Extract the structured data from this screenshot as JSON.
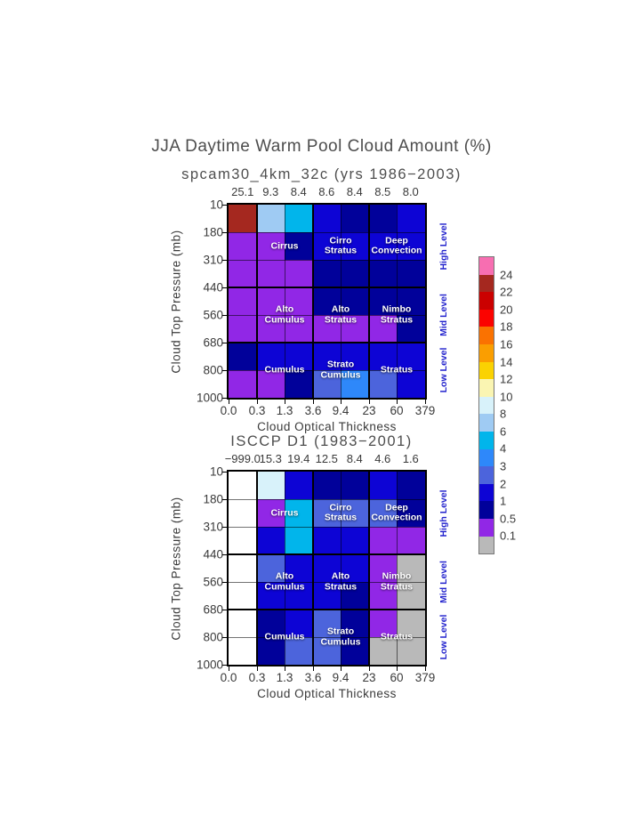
{
  "title": "JJA Daytime Warm Pool Cloud Amount (%)",
  "palette": {
    "gt24": "#f76eb1",
    "22-24": "#a5281f",
    "20-22": "#cb0100",
    "18-20": "#fb0300",
    "16-18": "#fa7201",
    "14-16": "#fa9e01",
    "12-14": "#fad202",
    "10-12": "#faf5b2",
    "8-10": "#d8f2fa",
    "6-8": "#9fcbf3",
    "4-6": "#01b5eb",
    "3-4": "#2e88fa",
    "2-3": "#4c64dc",
    "1-2": "#0d04d5",
    "0.5-1": "#01019a",
    "0.1-0.5": "#9127e6",
    "lt0.1": "#b9b9b9",
    "missing": "#ffffff"
  },
  "panels": [
    {
      "subtitle": "spcam30_4km_32c (yrs 1986−2003)",
      "column_values": [
        "25.1",
        "9.3",
        "8.4",
        "8.6",
        "8.4",
        "8.5",
        "8.0"
      ],
      "x_ticks": [
        "0.0",
        "0.3",
        "1.3",
        "3.6",
        "9.4",
        "23",
        "60",
        "379"
      ],
      "y_ticks": [
        "10",
        "180",
        "310",
        "440",
        "560",
        "680",
        "800",
        "1000"
      ],
      "x_label": "Cloud Optical Thickness",
      "y_label": "Cloud Top Pressure (mb)",
      "level_labels": [
        "High Level",
        "Mid Level",
        "Low Level"
      ],
      "type_labels": [
        {
          "lines": [
            "Cirrus"
          ],
          "bx": 0,
          "by": 0
        },
        {
          "lines": [
            "Cirro",
            "Stratus"
          ],
          "bx": 1,
          "by": 0
        },
        {
          "lines": [
            "Deep",
            "Convection"
          ],
          "bx": 2,
          "by": 0
        },
        {
          "lines": [
            "Alto",
            "Cumulus"
          ],
          "bx": 0,
          "by": 1
        },
        {
          "lines": [
            "Alto",
            "Stratus"
          ],
          "bx": 1,
          "by": 1
        },
        {
          "lines": [
            "Nimbo",
            "Stratus"
          ],
          "bx": 2,
          "by": 1
        },
        {
          "lines": [
            "Cumulus"
          ],
          "bx": 0,
          "by": 2
        },
        {
          "lines": [
            "Strato",
            "Cumulus"
          ],
          "bx": 1,
          "by": 2
        },
        {
          "lines": [
            "Stratus"
          ],
          "bx": 2,
          "by": 2
        }
      ]
    },
    {
      "subtitle": "ISCCP D1 (1983−2001)",
      "column_values": [
        "−999.0",
        "15.3",
        "19.4",
        "12.5",
        "8.4",
        "4.6",
        "1.6"
      ],
      "x_ticks": [
        "0.0",
        "0.3",
        "1.3",
        "3.6",
        "9.4",
        "23",
        "60",
        "379"
      ],
      "y_ticks": [
        "10",
        "180",
        "310",
        "440",
        "560",
        "680",
        "800",
        "1000"
      ],
      "x_label": "Cloud Optical Thickness",
      "y_label": "Cloud Top Pressure (mb)",
      "level_labels": [
        "High Level",
        "Mid Level",
        "Low Level"
      ],
      "type_labels": [
        {
          "lines": [
            "Cirrus"
          ],
          "bx": 0,
          "by": 0
        },
        {
          "lines": [
            "Cirro",
            "Stratus"
          ],
          "bx": 1,
          "by": 0
        },
        {
          "lines": [
            "Deep",
            "Convection"
          ],
          "bx": 2,
          "by": 0
        },
        {
          "lines": [
            "Alto",
            "Cumulus"
          ],
          "bx": 0,
          "by": 1
        },
        {
          "lines": [
            "Alto",
            "Stratus"
          ],
          "bx": 1,
          "by": 1
        },
        {
          "lines": [
            "Nimbo",
            "Stratus"
          ],
          "bx": 2,
          "by": 1
        },
        {
          "lines": [
            "Cumulus"
          ],
          "bx": 0,
          "by": 2
        },
        {
          "lines": [
            "Strato",
            "Cumulus"
          ],
          "bx": 1,
          "by": 2
        },
        {
          "lines": [
            "Stratus"
          ],
          "bx": 2,
          "by": 2
        }
      ]
    }
  ],
  "colorbar": {
    "segment_keys": [
      "gt24",
      "22-24",
      "20-22",
      "18-20",
      "16-18",
      "14-16",
      "12-14",
      "10-12",
      "8-10",
      "6-8",
      "4-6",
      "3-4",
      "2-3",
      "1-2",
      "0.5-1",
      "0.1-0.5",
      "lt0.1"
    ],
    "tick_labels": [
      "24",
      "22",
      "20",
      "18",
      "16",
      "14",
      "12",
      "10",
      "8",
      "6",
      "4",
      "3",
      "2",
      "1",
      "0.5",
      "0.1"
    ],
    "tick_values": [
      24,
      22,
      20,
      18,
      16,
      14,
      12,
      10,
      8,
      6,
      4,
      3,
      2,
      1,
      0.5,
      0.1
    ]
  },
  "chart_data": [
    {
      "type": "heatmap",
      "name": "spcam30_4km_32c",
      "title": "JJA Daytime Warm Pool Cloud Amount (%)",
      "subtitle": "spcam30_4km_32c (yrs 1986-2003)",
      "xlabel": "Cloud Optical Thickness",
      "ylabel": "Cloud Top Pressure (mb)",
      "units": "%",
      "x_bin_edges": [
        0.0,
        0.3,
        1.3,
        3.6,
        9.4,
        23,
        60,
        379
      ],
      "y_bin_edges_mb": [
        10,
        180,
        310,
        440,
        560,
        680,
        800,
        1000
      ],
      "column_totals_pct": [
        25.1,
        9.3,
        8.4,
        8.6,
        8.4,
        8.5,
        8.0
      ],
      "cell_bins": [
        [
          "22-24",
          "6-8",
          "4-6",
          "1-2",
          "0.5-1",
          "0.5-1",
          "1-2"
        ],
        [
          "0.1-0.5",
          "0.1-0.5",
          "0.5-1",
          "1-2",
          "1-2",
          "1-2",
          "1-2"
        ],
        [
          "0.1-0.5",
          "0.1-0.5",
          "0.1-0.5",
          "0.5-1",
          "0.5-1",
          "0.5-1",
          "0.5-1"
        ],
        [
          "0.1-0.5",
          "0.1-0.5",
          "0.1-0.5",
          "0.5-1",
          "0.5-1",
          "0.5-1",
          "0.5-1"
        ],
        [
          "0.1-0.5",
          "0.1-0.5",
          "0.1-0.5",
          "0.1-0.5",
          "0.1-0.5",
          "0.1-0.5",
          "0.5-1"
        ],
        [
          "0.5-1",
          "1-2",
          "1-2",
          "1-2",
          "1-2",
          "1-2",
          "1-2"
        ],
        [
          "0.1-0.5",
          "0.1-0.5",
          "0.5-1",
          "2-3",
          "3-4",
          "2-3",
          "1-2"
        ]
      ],
      "cloud_type_regions": [
        "Cirrus",
        "Cirro Stratus",
        "Deep Convection",
        "Alto Cumulus",
        "Alto Stratus",
        "Nimbo Stratus",
        "Cumulus",
        "Strato Cumulus",
        "Stratus"
      ],
      "level_bands": [
        "High Level (10-440 mb)",
        "Mid Level (440-680 mb)",
        "Low Level (680-1000 mb)"
      ]
    },
    {
      "type": "heatmap",
      "name": "ISCCP D1",
      "title": "JJA Daytime Warm Pool Cloud Amount (%)",
      "subtitle": "ISCCP D1 (1983-2001)",
      "xlabel": "Cloud Optical Thickness",
      "ylabel": "Cloud Top Pressure (mb)",
      "units": "%",
      "x_bin_edges": [
        0.0,
        0.3,
        1.3,
        3.6,
        9.4,
        23,
        60,
        379
      ],
      "y_bin_edges_mb": [
        10,
        180,
        310,
        440,
        560,
        680,
        800,
        1000
      ],
      "column_totals_pct": [
        -999.0,
        15.3,
        19.4,
        12.5,
        8.4,
        4.6,
        1.6
      ],
      "cell_bins": [
        [
          "missing",
          "8-10",
          "1-2",
          "0.5-1",
          "0.5-1",
          "1-2",
          "0.5-1"
        ],
        [
          "missing",
          "0.1-0.5",
          "4-6",
          "2-3",
          "2-3",
          "2-3",
          "0.5-1"
        ],
        [
          "missing",
          "1-2",
          "4-6",
          "1-2",
          "1-2",
          "0.1-0.5",
          "0.1-0.5"
        ],
        [
          "missing",
          "2-3",
          "1-2",
          "1-2",
          "1-2",
          "0.1-0.5",
          "lt0.1"
        ],
        [
          "missing",
          "1-2",
          "1-2",
          "1-2",
          "0.5-1",
          "0.1-0.5",
          "lt0.1"
        ],
        [
          "missing",
          "0.5-1",
          "1-2",
          "2-3",
          "0.5-1",
          "0.1-0.5",
          "lt0.1"
        ],
        [
          "missing",
          "0.5-1",
          "2-3",
          "2-3",
          "0.5-1",
          "lt0.1",
          "lt0.1"
        ]
      ],
      "cloud_type_regions": [
        "Cirrus",
        "Cirro Stratus",
        "Deep Convection",
        "Alto Cumulus",
        "Alto Stratus",
        "Nimbo Stratus",
        "Cumulus",
        "Strato Cumulus",
        "Stratus"
      ],
      "level_bands": [
        "High Level (10-440 mb)",
        "Mid Level (440-680 mb)",
        "Low Level (680-1000 mb)"
      ]
    }
  ]
}
